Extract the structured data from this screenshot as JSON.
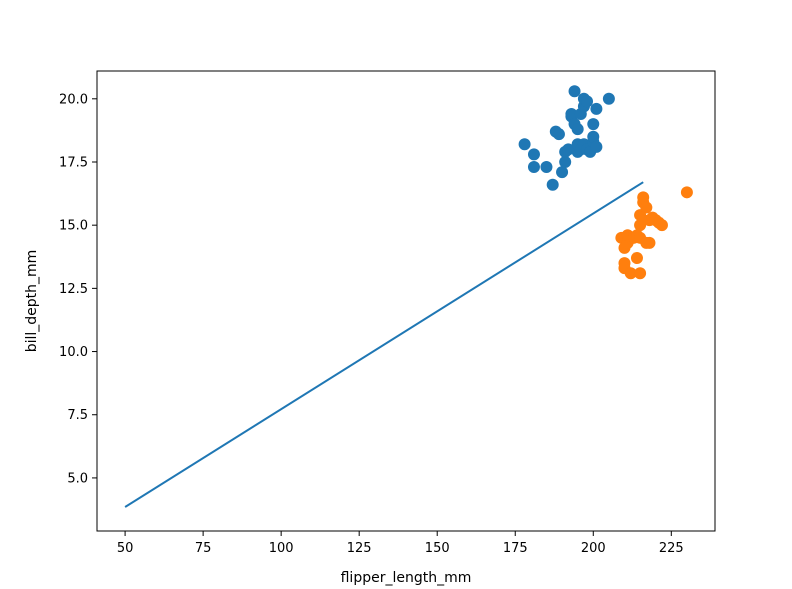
{
  "chart_data": {
    "type": "scatter",
    "title": "",
    "xlabel": "flipper_length_mm",
    "ylabel": "bill_depth_mm",
    "xlim": [
      41,
      239
    ],
    "ylim": [
      2.9,
      21.1
    ],
    "xticks": [
      50,
      75,
      100,
      125,
      150,
      175,
      200,
      225
    ],
    "xtick_labels": [
      "50",
      "75",
      "100",
      "125",
      "150",
      "175",
      "200",
      "225"
    ],
    "yticks": [
      5.0,
      7.5,
      10.0,
      12.5,
      15.0,
      17.5,
      20.0
    ],
    "ytick_labels": [
      "5.0",
      "7.5",
      "10.0",
      "12.5",
      "15.0",
      "17.5",
      "20.0"
    ],
    "grid": false,
    "legend": "none",
    "colors": {
      "series1": "#1f77b4",
      "series2": "#ff7f0e",
      "line": "#1f77b4"
    },
    "series": [
      {
        "color": "#1f77b4",
        "points": [
          [
            178,
            18.2
          ],
          [
            181,
            17.8
          ],
          [
            181,
            17.3
          ],
          [
            185,
            17.3
          ],
          [
            187,
            16.6
          ],
          [
            188,
            18.7
          ],
          [
            189,
            18.6
          ],
          [
            190,
            17.1
          ],
          [
            191,
            17.5
          ],
          [
            191,
            17.9
          ],
          [
            192,
            18.0
          ],
          [
            193,
            19.3
          ],
          [
            193,
            19.4
          ],
          [
            194,
            20.3
          ],
          [
            194,
            19.0
          ],
          [
            195,
            18.8
          ],
          [
            195,
            17.9
          ],
          [
            195,
            18.2
          ],
          [
            196,
            19.4
          ],
          [
            196,
            18.0
          ],
          [
            197,
            18.2
          ],
          [
            197,
            19.7
          ],
          [
            197,
            20.0
          ],
          [
            198,
            19.9
          ],
          [
            198,
            18.0
          ],
          [
            199,
            17.9
          ],
          [
            200,
            18.3
          ],
          [
            200,
            18.5
          ],
          [
            200,
            19.0
          ],
          [
            201,
            19.6
          ],
          [
            201,
            18.1
          ],
          [
            205,
            20.0
          ]
        ]
      },
      {
        "color": "#ff7f0e",
        "points": [
          [
            209,
            14.5
          ],
          [
            210,
            13.5
          ],
          [
            210,
            14.1
          ],
          [
            210,
            13.3
          ],
          [
            211,
            14.3
          ],
          [
            211,
            14.6
          ],
          [
            212,
            14.5
          ],
          [
            212,
            13.1
          ],
          [
            213,
            14.5
          ],
          [
            214,
            13.7
          ],
          [
            214,
            14.6
          ],
          [
            215,
            14.5
          ],
          [
            215,
            15.0
          ],
          [
            215,
            15.4
          ],
          [
            215,
            13.1
          ],
          [
            216,
            15.9
          ],
          [
            216,
            16.1
          ],
          [
            216,
            15.2
          ],
          [
            217,
            15.7
          ],
          [
            217,
            14.3
          ],
          [
            218,
            14.3
          ],
          [
            218,
            15.2
          ],
          [
            219,
            15.3
          ],
          [
            220,
            15.2
          ],
          [
            221,
            15.1
          ],
          [
            222,
            15.0
          ],
          [
            230,
            16.3
          ]
        ]
      }
    ],
    "line": {
      "color": "#1f77b4",
      "x": [
        50,
        216
      ],
      "y": [
        3.85,
        16.7
      ]
    }
  }
}
